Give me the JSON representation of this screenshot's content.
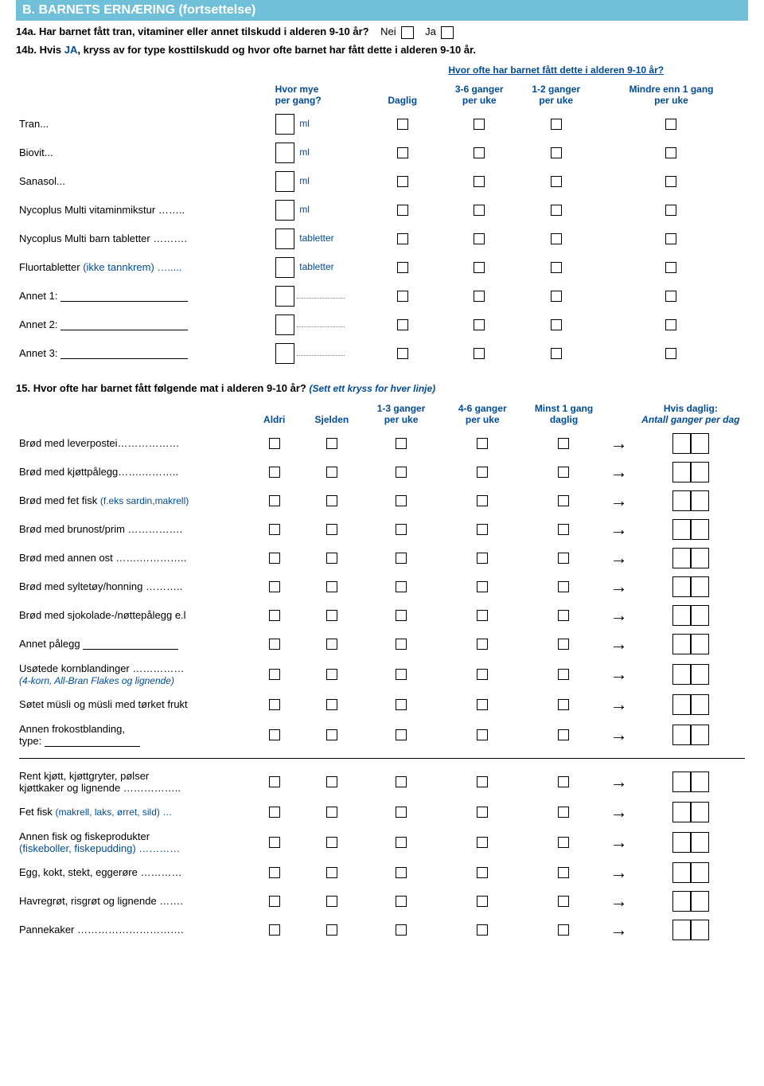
{
  "section_header": "B.   BARNETS ERNÆRING (fortsettelse)",
  "q14a": {
    "num": "14a.",
    "text": "Har barnet fått tran, vitaminer eller annet tilskudd i alderen 9-10 år?",
    "no": "Nei",
    "yes": "Ja"
  },
  "q14b": {
    "num": "14b.",
    "prefix": "Hvis",
    "ja": "JA",
    "text": ", kryss av for type kosttilskudd og hvor ofte barnet har fått dette i alderen 9-10 år.",
    "over_header": "Hvor ofte har barnet fått dette i alderen 9-10 år?",
    "col_amt": "Hvor mye\nper gang?",
    "col_daily": "Daglig",
    "col_36": "3-6 ganger\nper uke",
    "col_12": "1-2 ganger\nper uke",
    "col_less": "Mindre enn 1 gang\nper uke",
    "rows": [
      {
        "label": "Tran...",
        "unit": "ml",
        "name": "q14-tran"
      },
      {
        "label": "Biovit...",
        "unit": "ml",
        "name": "q14-biovit"
      },
      {
        "label": "Sanasol...",
        "unit": "ml",
        "name": "q14-sanasol"
      },
      {
        "label": "Nycoplus Multi vitaminmikstur ……..",
        "unit": "ml",
        "name": "q14-nycoplus-mix"
      },
      {
        "label": "Nycoplus Multi barn tabletter ……….",
        "unit": "tabletter",
        "name": "q14-nycoplus-tab"
      },
      {
        "label": "Fluortabletter (ikke tannkrem) ….....",
        "unit": "tabletter",
        "blue_parens": true,
        "name": "q14-fluor"
      }
    ],
    "annet": [
      "Annet 1:",
      "Annet 2:",
      "Annet 3:"
    ]
  },
  "q15": {
    "num": "15.",
    "text": "Hvor ofte har barnet fått følgende mat i alderen 9-10 år?",
    "hint": "(Sett ett kryss for hver linje)",
    "cols": {
      "never": "Aldri",
      "seldom": "Sjelden",
      "c13": "1-3 ganger\nper uke",
      "c46": "4-6 ganger\nper uke",
      "min1": "Minst 1 gang\ndaglig",
      "ifdaily": "Hvis daglig:",
      "perday": "Antall ganger per dag"
    },
    "rows": [
      {
        "label": "Brød med leverpostei………………",
        "name": "q15-leverpostei"
      },
      {
        "label": "Brød med kjøttpålegg…….………..",
        "name": "q15-kjottpalegg"
      },
      {
        "label": "Brød med fet fisk ",
        "trailing": "(f.eks sardin,makrell)",
        "name": "q15-fet-fisk-brod"
      },
      {
        "label": "Brød med brunost/prim …………….",
        "name": "q15-brunost"
      },
      {
        "label": "Brød med annen ost …….…………..",
        "name": "q15-annen-ost"
      },
      {
        "label": "Brød med syltetøy/honning ………..",
        "name": "q15-syltetoy"
      },
      {
        "label": "Brød med sjokolade-/nøttepålegg e.l",
        "name": "q15-sjokopalegg"
      },
      {
        "label": "Annet pålegg ",
        "free": true,
        "name": "q15-annet-palegg"
      },
      {
        "label": "Usøtede kornblandinger ……………",
        "sub": "(4-korn, All-Bran Flakes og lignende)",
        "name": "q15-usotede-korn"
      },
      {
        "label": "Søtet müsli og müsli med tørket frukt",
        "name": "q15-sotet-musli"
      },
      {
        "label": "Annen frokostblanding,",
        "type_line": "type:",
        "name": "q15-annen-frokost"
      },
      {
        "divider": true
      },
      {
        "label": "Rent kjøtt, kjøttgryter, pølser",
        "label2": "kjøttkaker og lignende ……………..",
        "name": "q15-rent-kjott"
      },
      {
        "label": "Fet fisk ",
        "trailing": "(makrell, laks, ørret, sild) …",
        "name": "q15-fet-fisk"
      },
      {
        "label": "Annen fisk og fiskeprodukter",
        "sub_black": "(fiskeboller, fiskepudding) …………",
        "name": "q15-annen-fisk"
      },
      {
        "label": "Egg, kokt, stekt, eggerøre …………",
        "name": "q15-egg"
      },
      {
        "label": "Havregrøt, risgrøt og lignende …….",
        "name": "q15-grot"
      },
      {
        "label": "Pannekaker ………………………….",
        "name": "q15-pannekaker"
      }
    ]
  }
}
